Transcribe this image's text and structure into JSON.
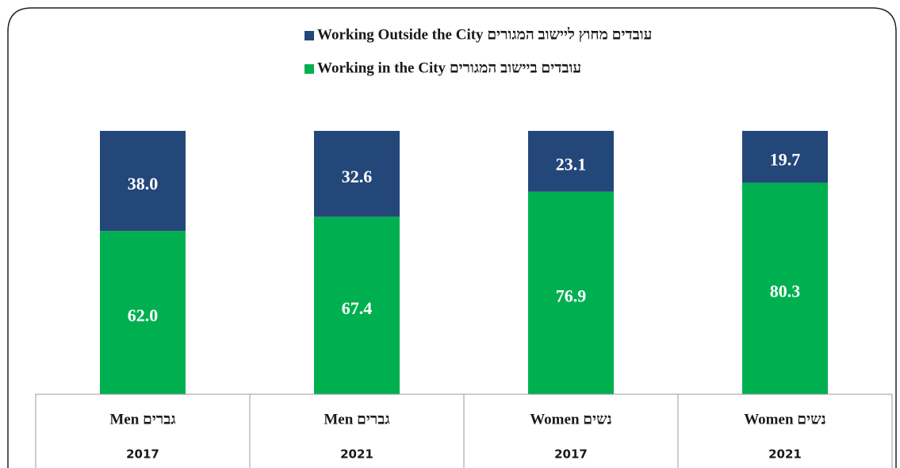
{
  "chart_data": {
    "type": "stacked_bar",
    "categories": [
      "Men גברים",
      "Men גברים",
      "Women נשים",
      "Women נשים"
    ],
    "sublabels": [
      "2017",
      "2021",
      "2017",
      "2021"
    ],
    "series": [
      {
        "name": "Working in the City עובדים ביישוב המגורים",
        "color": "#00b050",
        "values": [
          62.0,
          67.4,
          76.9,
          80.3
        ],
        "value_labels": [
          "62.0",
          "67.4",
          "76.9",
          "80.3"
        ]
      },
      {
        "name": "Working Outside the City עובדים מחוץ ליישוב המגורים",
        "color": "#24477a",
        "values": [
          38.0,
          32.6,
          23.1,
          19.7
        ],
        "value_labels": [
          "38.0",
          "32.6",
          "23.1",
          "19.7"
        ]
      }
    ],
    "ylim": [
      0,
      100
    ]
  }
}
